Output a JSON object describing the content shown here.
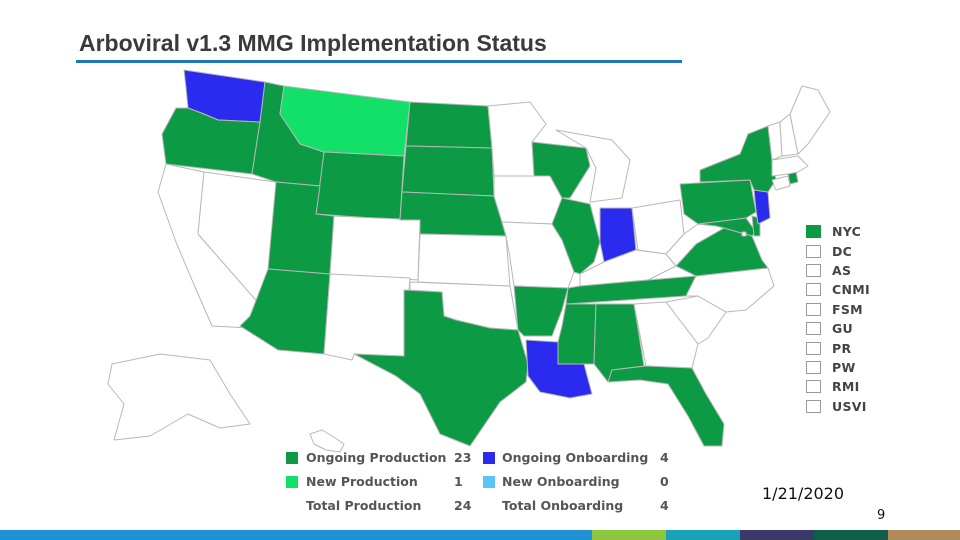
{
  "slide": {
    "title": "Arboviral v1.3 MMG Implementation Status",
    "date": "1/21/2020",
    "page_number": "9"
  },
  "colors": {
    "ongoing_production": "#0c9a45",
    "new_production": "#12e068",
    "ongoing_onboarding": "#2b2bf0",
    "new_onboarding": "#5bc4f5",
    "not_started": "#ffffff",
    "title_rule": "#1f77b4"
  },
  "map": {
    "ongoing_production": [
      "OR",
      "ID",
      "WY",
      "ND",
      "SD",
      "NE",
      "UT",
      "AZ",
      "TX",
      "AR",
      "MS",
      "AL",
      "TN",
      "FL",
      "WI",
      "IL",
      "NY",
      "PA",
      "VA",
      "MD",
      "DE",
      "RI",
      "NYC"
    ],
    "new_production": [
      "MT"
    ],
    "ongoing_onboarding": [
      "WA",
      "IN",
      "LA",
      "NJ"
    ],
    "not_started": [
      "CA",
      "NV",
      "CO",
      "NM",
      "KS",
      "OK",
      "MN",
      "IA",
      "MO",
      "MI",
      "OH",
      "KY",
      "WV",
      "GA",
      "SC",
      "NC",
      "ME",
      "VT",
      "NH",
      "MA",
      "CT",
      "AK",
      "HI",
      "DC"
    ]
  },
  "territories": [
    {
      "label": "NYC",
      "status": "ongoing_production"
    },
    {
      "label": "DC",
      "status": "not_started"
    },
    {
      "label": "AS",
      "status": "not_started"
    },
    {
      "label": "CNMI",
      "status": "not_started"
    },
    {
      "label": "FSM",
      "status": "not_started"
    },
    {
      "label": "GU",
      "status": "not_started"
    },
    {
      "label": "PR",
      "status": "not_started"
    },
    {
      "label": "PW",
      "status": "not_started"
    },
    {
      "label": "RMI",
      "status": "not_started"
    },
    {
      "label": "USVI",
      "status": "not_started"
    }
  ],
  "legend": {
    "ongoing_production": {
      "label": "Ongoing Production",
      "count": "23"
    },
    "new_production": {
      "label": "New Production",
      "count": "1"
    },
    "total_production": {
      "label": "Total Production",
      "count": "24"
    },
    "ongoing_onboarding": {
      "label": "Ongoing Onboarding",
      "count": "4"
    },
    "new_onboarding": {
      "label": "New Onboarding",
      "count": "0"
    },
    "total_onboarding": {
      "label": "Total Onboarding",
      "count": "4"
    }
  },
  "footer_colors": [
    "#1f8fd6",
    "#1f8fd6",
    "#8cc63f",
    "#17a2b8",
    "#3a3a6a",
    "#0e5e4a",
    "#b08a5a"
  ]
}
